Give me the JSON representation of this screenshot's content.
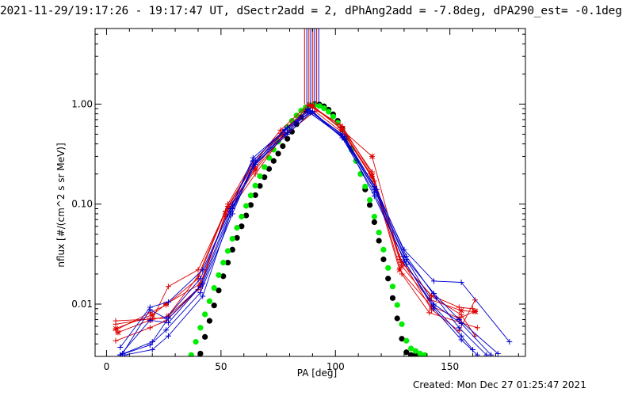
{
  "header": {
    "title": "2021-11-29/19:17:26 - 19:17:47 UT, dSectr2add = 2, dPhAng2add = -7.8deg, dPA290_est= -0.1deg"
  },
  "footer": {
    "created": "Created: Mon Dec 27 01:25:47 2021"
  },
  "chart_data": {
    "type": "line",
    "xlabel": "PA [deg]",
    "ylabel": "nflux [#/(cm^2 s sr MeV)]",
    "xlim": [
      -5,
      183
    ],
    "ylim": [
      0.003,
      5.7
    ],
    "yscale": "log",
    "x_ticks": [
      0,
      50,
      100,
      150
    ],
    "x_tick_labels": [
      "0",
      "50",
      "100",
      "150"
    ],
    "y_ticks": [
      0.01,
      0.1,
      1.0
    ],
    "y_tick_labels": [
      "0.01",
      "0.10",
      "1.00"
    ],
    "colors": {
      "red": "#dd0000",
      "blue": "#0000cc",
      "green": "#00ee00",
      "black": "#000000"
    },
    "vertical_lines": [
      {
        "x": 86.5,
        "color": "#dd0000"
      },
      {
        "x": 87.5,
        "color": "#0000cc"
      },
      {
        "x": 88.4,
        "color": "#dd0000"
      },
      {
        "x": 89.2,
        "color": "#0000cc"
      },
      {
        "x": 90.1,
        "color": "#dd0000"
      },
      {
        "x": 90.9,
        "color": "#0000cc"
      },
      {
        "x": 91.8,
        "color": "#dd0000"
      },
      {
        "x": 92.7,
        "color": "#0000cc"
      }
    ],
    "vertical_lines_from_y": 1.0,
    "fitted_curves": [
      {
        "color": "#000000",
        "x": [
          41,
          43,
          45,
          47,
          49,
          51,
          53,
          55,
          57,
          59,
          61,
          63,
          65,
          67,
          69,
          71,
          73,
          75,
          77,
          79,
          81,
          83,
          85,
          87,
          89,
          91,
          93,
          95,
          97,
          99,
          101,
          103,
          105,
          107,
          109,
          111,
          113,
          115,
          117,
          119,
          121,
          123,
          125,
          127,
          129,
          131,
          133,
          135,
          137
        ],
        "y": [
          0.0032,
          0.0047,
          0.0068,
          0.0097,
          0.0137,
          0.019,
          0.026,
          0.035,
          0.046,
          0.06,
          0.077,
          0.098,
          0.123,
          0.152,
          0.186,
          0.225,
          0.27,
          0.32,
          0.38,
          0.45,
          0.53,
          0.63,
          0.74,
          0.86,
          0.96,
          1.0,
          0.99,
          0.95,
          0.88,
          0.79,
          0.68,
          0.57,
          0.46,
          0.36,
          0.27,
          0.2,
          0.14,
          0.098,
          0.066,
          0.043,
          0.028,
          0.018,
          0.0115,
          0.0072,
          0.0045,
          0.0033,
          0.0031,
          0.0031,
          0.0031
        ]
      },
      {
        "color": "#00ee00",
        "x": [
          37,
          39,
          41,
          43,
          45,
          47,
          49,
          51,
          53,
          55,
          57,
          59,
          61,
          63,
          65,
          67,
          69,
          71,
          73,
          75,
          77,
          79,
          81,
          83,
          85,
          87,
          89,
          91,
          93,
          95,
          97,
          99,
          101,
          103,
          105,
          107,
          109,
          111,
          113,
          115,
          117,
          119,
          121,
          123,
          125,
          127,
          129,
          131,
          133,
          135,
          137,
          139
        ],
        "y": [
          0.0031,
          0.0042,
          0.0058,
          0.0079,
          0.0107,
          0.0145,
          0.0195,
          0.026,
          0.034,
          0.045,
          0.058,
          0.075,
          0.096,
          0.122,
          0.153,
          0.19,
          0.235,
          0.29,
          0.35,
          0.42,
          0.5,
          0.59,
          0.68,
          0.77,
          0.86,
          0.93,
          0.97,
          0.98,
          0.96,
          0.91,
          0.84,
          0.75,
          0.65,
          0.55,
          0.45,
          0.35,
          0.27,
          0.2,
          0.15,
          0.11,
          0.075,
          0.052,
          0.035,
          0.023,
          0.015,
          0.0098,
          0.0063,
          0.0043,
          0.0036,
          0.0034,
          0.0032,
          0.0031
        ]
      }
    ],
    "series": [
      {
        "color": "#dd0000",
        "marker": "+",
        "x": [
          4,
          20,
          27,
          40,
          53,
          64,
          76,
          88,
          102,
          116,
          128,
          142,
          155,
          161
        ],
        "y": [
          0.0068,
          0.0071,
          0.015,
          0.022,
          0.095,
          0.25,
          0.55,
          0.98,
          0.62,
          0.21,
          0.028,
          0.012,
          0.0078,
          0.0048
        ]
      },
      {
        "color": "#dd0000",
        "marker": "+",
        "x": [
          4,
          19,
          26,
          40,
          52,
          64,
          76,
          89,
          103,
          116,
          129,
          142,
          154,
          160
        ],
        "y": [
          0.0055,
          0.0082,
          0.0098,
          0.018,
          0.085,
          0.24,
          0.51,
          0.97,
          0.6,
          0.2,
          0.026,
          0.0122,
          0.0093,
          0.009
        ]
      },
      {
        "color": "#dd0000",
        "marker": "*",
        "x": [
          4,
          20,
          26,
          41,
          53,
          65,
          77,
          90,
          103,
          116,
          129,
          141,
          155,
          161
        ],
        "y": [
          0.0057,
          0.0078,
          0.01,
          0.016,
          0.09,
          0.23,
          0.52,
          0.97,
          0.55,
          0.3,
          0.024,
          0.0112,
          0.0086,
          0.0084
        ]
      },
      {
        "color": "#dd0000",
        "marker": "*",
        "x": [
          5,
          19,
          27,
          41,
          52,
          65,
          77,
          90,
          103,
          116,
          128,
          142,
          154,
          161
        ],
        "y": [
          0.0052,
          0.0069,
          0.0076,
          0.015,
          0.08,
          0.22,
          0.48,
          0.96,
          0.56,
          0.19,
          0.022,
          0.0095,
          0.0072,
          0.0085
        ]
      },
      {
        "color": "#dd0000",
        "marker": "+",
        "x": [
          4,
          19,
          26,
          40,
          52,
          65,
          76,
          91,
          104,
          117,
          129,
          141,
          155,
          162
        ],
        "y": [
          0.0043,
          0.0058,
          0.0068,
          0.014,
          0.075,
          0.2,
          0.45,
          0.85,
          0.5,
          0.17,
          0.02,
          0.0082,
          0.0065,
          0.0058
        ]
      },
      {
        "color": "#dd0000",
        "marker": "+",
        "x": [
          4,
          20,
          26,
          40,
          53,
          64,
          77,
          89,
          102,
          115,
          128,
          142,
          154,
          161
        ],
        "y": [
          0.0063,
          0.0072,
          0.0072,
          0.019,
          0.1,
          0.27,
          0.52,
          0.99,
          0.58,
          0.2,
          0.03,
          0.0088,
          0.0054,
          0.011
        ]
      },
      {
        "color": "#0000cc",
        "marker": "+",
        "x": [
          6,
          19,
          27,
          42,
          55,
          64,
          79,
          88,
          103,
          117,
          130,
          143,
          155,
          176
        ],
        "y": [
          0.0037,
          0.0093,
          0.0105,
          0.022,
          0.1,
          0.29,
          0.58,
          0.88,
          0.5,
          0.15,
          0.035,
          0.017,
          0.0165,
          0.0042
        ]
      },
      {
        "color": "#0000cc",
        "marker": "+",
        "x": [
          7,
          19,
          26,
          41,
          54,
          64,
          78,
          88,
          103,
          117,
          130,
          143,
          154,
          171
        ],
        "y": [
          0.0032,
          0.0088,
          0.0072,
          0.018,
          0.09,
          0.27,
          0.56,
          0.84,
          0.48,
          0.14,
          0.03,
          0.0128,
          0.007,
          0.0032
        ]
      },
      {
        "color": "#0000cc",
        "marker": "+",
        "x": [
          6,
          19,
          27,
          41,
          54,
          65,
          78,
          89,
          104,
          118,
          131,
          143,
          155,
          168
        ],
        "y": [
          0.0031,
          0.0069,
          0.0065,
          0.015,
          0.085,
          0.26,
          0.55,
          0.82,
          0.45,
          0.13,
          0.028,
          0.01,
          0.0064,
          0.0031
        ]
      },
      {
        "color": "#0000cc",
        "marker": "+",
        "x": [
          6,
          20,
          27,
          42,
          55,
          65,
          79,
          89,
          104,
          118,
          131,
          144,
          154,
          166
        ],
        "y": [
          0.0031,
          0.0042,
          0.0072,
          0.016,
          0.09,
          0.27,
          0.52,
          0.86,
          0.47,
          0.14,
          0.03,
          0.0115,
          0.0058,
          0.0031
        ]
      },
      {
        "color": "#0000cc",
        "marker": "+",
        "x": [
          6,
          19,
          26,
          41,
          55,
          64,
          78,
          88,
          103,
          117,
          130,
          143,
          155,
          160
        ],
        "y": [
          0.0031,
          0.0039,
          0.0055,
          0.013,
          0.08,
          0.24,
          0.5,
          0.9,
          0.46,
          0.13,
          0.027,
          0.0095,
          0.0048,
          0.0035
        ]
      },
      {
        "color": "#0000cc",
        "marker": "+",
        "x": [
          8,
          20,
          27,
          42,
          54,
          65,
          79,
          90,
          104,
          117,
          131,
          143,
          155,
          162
        ],
        "y": [
          0.0031,
          0.0035,
          0.0048,
          0.012,
          0.078,
          0.25,
          0.5,
          0.85,
          0.44,
          0.12,
          0.025,
          0.009,
          0.0044,
          0.0031
        ]
      }
    ]
  }
}
